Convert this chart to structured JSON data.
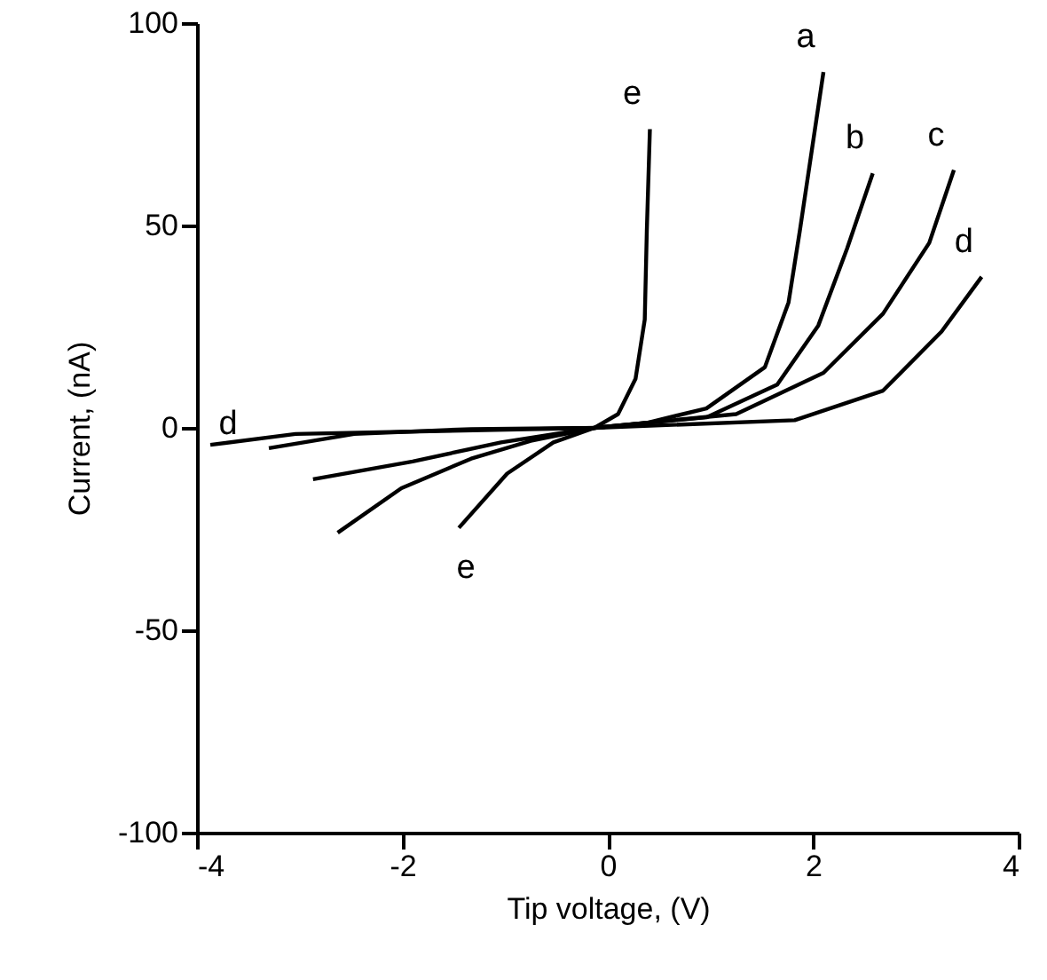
{
  "chart_data": {
    "type": "line",
    "xlabel": "Tip voltage, (V)",
    "ylabel": "Current, (nA)",
    "xlim": [
      -4,
      4
    ],
    "xticks": [
      -4,
      -2,
      0,
      2,
      4
    ],
    "ylim": [
      -100,
      100
    ],
    "yticks": [
      -100,
      -50,
      0,
      50,
      100
    ],
    "grid": false,
    "marker": "none",
    "line_style": "solid",
    "series": [
      {
        "name": "a",
        "color": "#000000",
        "x": [
          -2.63,
          -2.01,
          -1.33,
          -0.75,
          -0.13,
          0.39,
          0.96,
          1.53,
          1.76,
          1.87,
          2.1
        ],
        "values": [
          -25.9,
          -14.9,
          -7.6,
          -3.2,
          0,
          1.3,
          4.8,
          15,
          31,
          48.7,
          87.9
        ]
      },
      {
        "name": "b",
        "color": "#000000",
        "x": [
          -2.87,
          -1.9,
          -1.04,
          -0.13,
          0.96,
          1.65,
          2.05,
          2.33,
          2.58
        ],
        "values": [
          -12.7,
          -8.3,
          -3.6,
          0,
          2.6,
          10.7,
          25.3,
          44.3,
          62.9
        ]
      },
      {
        "name": "c",
        "color": "#000000",
        "x": [
          -3.3,
          -2.47,
          -1.33,
          -0.13,
          1.25,
          2.1,
          2.68,
          3.13,
          3.37
        ],
        "values": [
          -5,
          -1.5,
          -0.3,
          0,
          3.4,
          13.6,
          28.2,
          45.7,
          63.7
        ]
      },
      {
        "name": "d",
        "color": "#000000",
        "x": [
          -3.87,
          -3.04,
          -0.13,
          1.82,
          2.68,
          3.25,
          3.64
        ],
        "values": [
          -4.2,
          -1.5,
          0,
          1.9,
          9.2,
          23.8,
          37.3
        ]
      },
      {
        "name": "e",
        "color": "#000000",
        "x": [
          -1.45,
          -0.98,
          -0.53,
          -0.13,
          0.1,
          0.27,
          0.36,
          0.38,
          0.41
        ],
        "values": [
          -24.7,
          -11.3,
          -3.6,
          0,
          3.4,
          12.1,
          26.8,
          48.7,
          73.8
        ]
      }
    ],
    "annotations": [
      {
        "text": "d",
        "x": -3.87,
        "y": -4.2
      },
      {
        "text": "e",
        "x": -1.45,
        "y": -24.7
      }
    ]
  }
}
